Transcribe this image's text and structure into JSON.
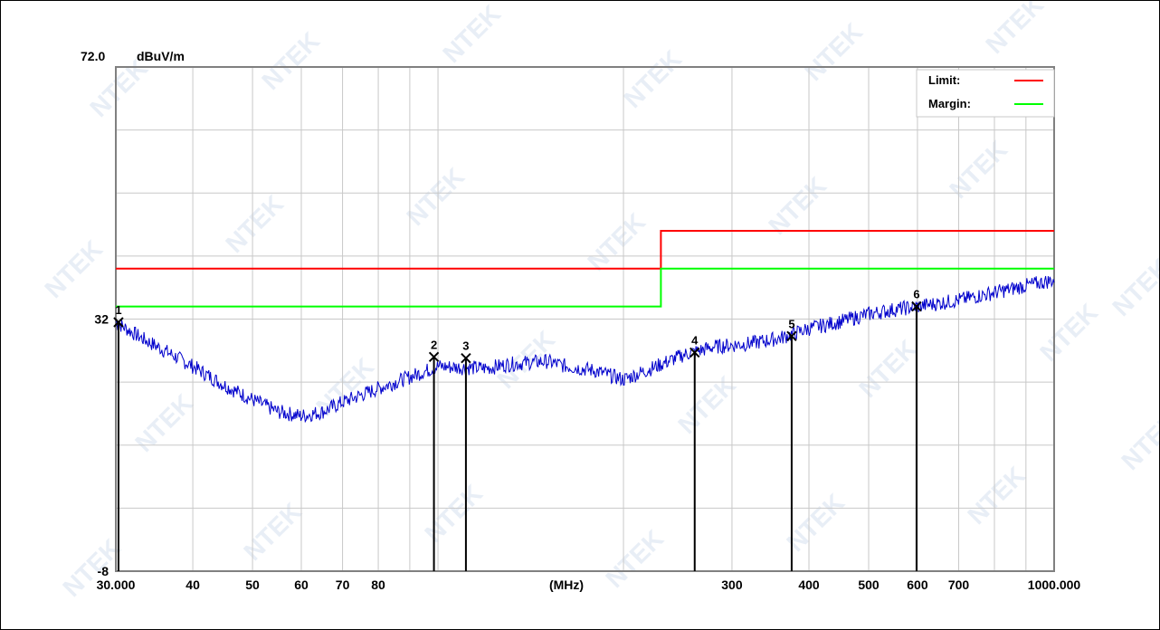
{
  "chart_data": {
    "type": "line",
    "ylabel_unit": "dBuV/m",
    "ytop_label": "72.0",
    "ylim": [
      -8,
      72
    ],
    "y_ticks": [
      {
        "value": 32,
        "label": "32"
      },
      {
        "value": -8,
        "label": "-8"
      }
    ],
    "xlim": [
      30,
      1000
    ],
    "x_scale": "log",
    "x_unit_label": "(MHz)",
    "x_ticks": [
      {
        "value": 30,
        "label": "30.000"
      },
      {
        "value": 40,
        "label": "40"
      },
      {
        "value": 50,
        "label": "50"
      },
      {
        "value": 60,
        "label": "60"
      },
      {
        "value": 70,
        "label": "70"
      },
      {
        "value": 80,
        "label": "80"
      },
      {
        "value": 300,
        "label": "300"
      },
      {
        "value": 400,
        "label": "400"
      },
      {
        "value": 500,
        "label": "500"
      },
      {
        "value": 600,
        "label": "600"
      },
      {
        "value": 700,
        "label": "700"
      },
      {
        "value": 1000,
        "label": "1000.000"
      }
    ],
    "grid": true,
    "legend_position": "top-right",
    "series": [
      {
        "name": "Limit:",
        "color": "#ff0000",
        "points": [
          [
            30,
            40.0
          ],
          [
            230,
            40.0
          ],
          [
            230,
            46.0
          ],
          [
            1000,
            46.0
          ]
        ]
      },
      {
        "name": "Margin:",
        "color": "#00ff00",
        "points": [
          [
            30,
            34.0
          ],
          [
            230,
            34.0
          ],
          [
            230,
            40.0
          ],
          [
            1000,
            40.0
          ]
        ]
      },
      {
        "name": "",
        "color": "#0000cc",
        "points": [
          [
            30,
            31.5
          ],
          [
            33,
            29.0
          ],
          [
            36,
            27.0
          ],
          [
            40,
            24.5
          ],
          [
            45,
            21.5
          ],
          [
            50,
            19.2
          ],
          [
            55,
            17.3
          ],
          [
            60,
            16.6
          ],
          [
            65,
            17.3
          ],
          [
            70,
            18.8
          ],
          [
            80,
            21.0
          ],
          [
            90,
            22.8
          ],
          [
            100,
            24.5
          ],
          [
            110,
            24.3
          ],
          [
            120,
            24.2
          ],
          [
            130,
            24.8
          ],
          [
            140,
            25.1
          ],
          [
            150,
            25.3
          ],
          [
            160,
            24.6
          ],
          [
            180,
            23.8
          ],
          [
            200,
            22.4
          ],
          [
            220,
            24.0
          ],
          [
            250,
            26.3
          ],
          [
            280,
            27.6
          ],
          [
            320,
            28.1
          ],
          [
            360,
            29.0
          ],
          [
            400,
            30.5
          ],
          [
            450,
            31.6
          ],
          [
            500,
            32.8
          ],
          [
            550,
            33.5
          ],
          [
            600,
            34.0
          ],
          [
            700,
            35.0
          ],
          [
            800,
            36.2
          ],
          [
            900,
            37.3
          ],
          [
            1000,
            38.2
          ]
        ]
      }
    ],
    "markers": [
      {
        "label": "1",
        "freq": 30.3,
        "level": 31.5
      },
      {
        "label": "2",
        "freq": 98.5,
        "level": 26.0
      },
      {
        "label": "3",
        "freq": 111.0,
        "level": 25.8
      },
      {
        "label": "4",
        "freq": 261.0,
        "level": 26.7
      },
      {
        "label": "5",
        "freq": 375.0,
        "level": 29.3
      },
      {
        "label": "6",
        "freq": 598.0,
        "level": 34.0
      }
    ]
  },
  "watermark": "NTEK"
}
